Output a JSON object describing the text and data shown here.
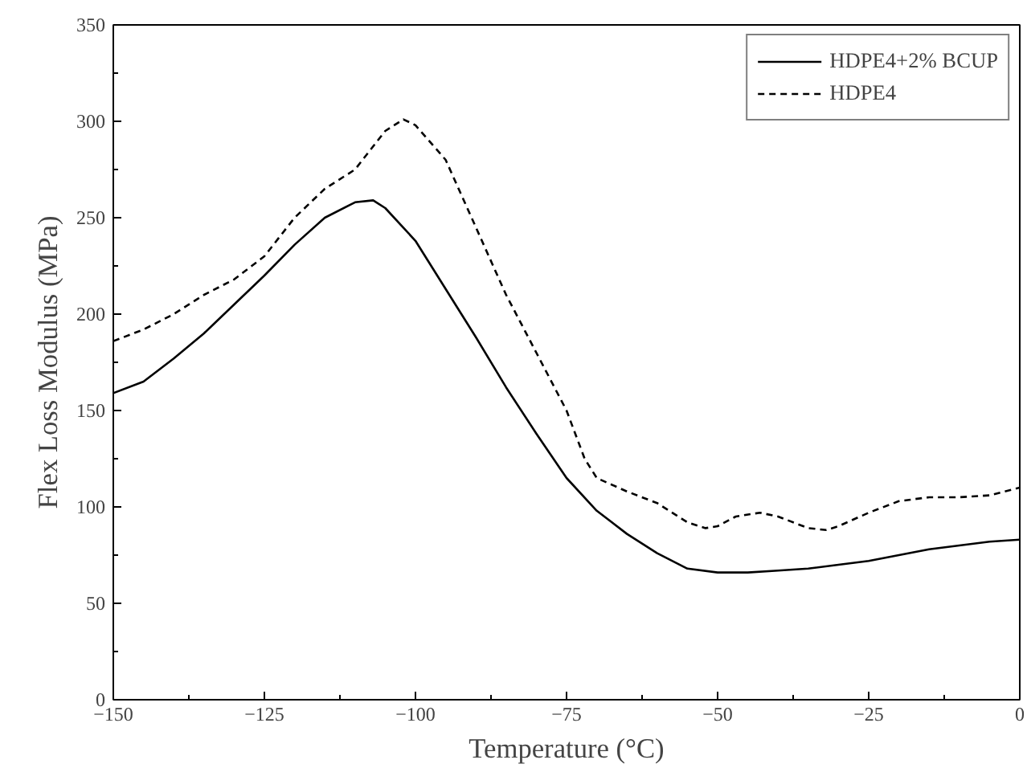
{
  "chart_data": {
    "type": "line",
    "xlabel": "Temperature (°C)",
    "ylabel": "Flex Loss Modulus (MPa)",
    "xlim": [
      -150,
      0
    ],
    "xticks": [
      -150,
      -125,
      -100,
      -75,
      -50,
      -25,
      0
    ],
    "ylim": [
      0,
      350
    ],
    "yticks": [
      0,
      50,
      100,
      150,
      200,
      250,
      300,
      350
    ],
    "grid": false,
    "legend": "top right",
    "series": [
      {
        "name": "HDPE4+2% BCUP",
        "color": "#000000",
        "line_style": "solid",
        "x": [
          -150,
          -145,
          -140,
          -135,
          -130,
          -125,
          -120,
          -115,
          -110,
          -107,
          -105,
          -100,
          -95,
          -90,
          -85,
          -80,
          -75,
          -70,
          -65,
          -60,
          -55,
          -50,
          -45,
          -40,
          -35,
          -30,
          -25,
          -20,
          -15,
          -10,
          -5,
          0
        ],
        "values": [
          159,
          165,
          177,
          190,
          205,
          220,
          236,
          250,
          258,
          259,
          255,
          238,
          213,
          188,
          162,
          138,
          115,
          98,
          86,
          76,
          68,
          66,
          66,
          67,
          68,
          70,
          72,
          75,
          78,
          80,
          82,
          83
        ]
      },
      {
        "name": "HDPE4",
        "color": "#000000",
        "line_style": "dashed",
        "x": [
          -150,
          -145,
          -140,
          -135,
          -130,
          -125,
          -120,
          -115,
          -110,
          -105,
          -102,
          -100,
          -95,
          -90,
          -85,
          -80,
          -75,
          -72,
          -70,
          -65,
          -60,
          -55,
          -52,
          -50,
          -47,
          -43,
          -40,
          -35,
          -32,
          -30,
          -25,
          -20,
          -15,
          -10,
          -5,
          0
        ],
        "values": [
          186,
          192,
          200,
          210,
          218,
          230,
          250,
          265,
          275,
          295,
          301,
          298,
          280,
          245,
          210,
          180,
          150,
          125,
          115,
          108,
          102,
          92,
          89,
          90,
          95,
          97,
          95,
          89,
          88,
          90,
          97,
          103,
          105,
          105,
          106,
          110
        ]
      }
    ]
  }
}
